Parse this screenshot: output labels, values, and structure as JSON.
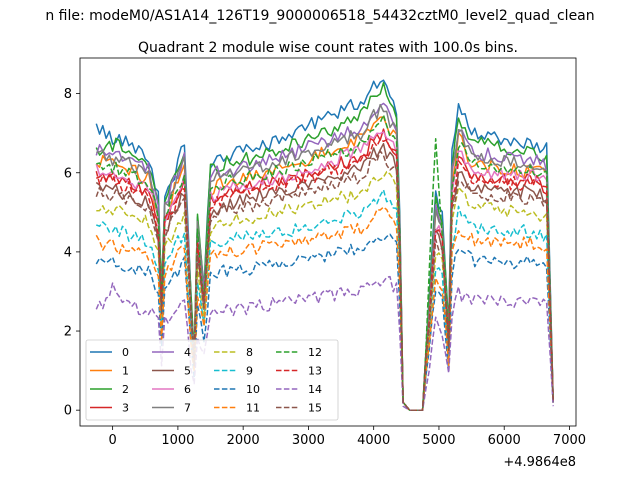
{
  "figure": {
    "suptitle": "n file: modeM0/AS1A14_126T19_9000006518_54432cztM0_level2_quad_clean",
    "offset_text": "+4.9864e8"
  },
  "chart_data": {
    "type": "line",
    "title": "Quadrant 2 module wise count rates with 100.0s bins.",
    "xlabel": "",
    "ylabel": "",
    "xlim": [
      -500,
      7100
    ],
    "ylim": [
      -0.4,
      8.9
    ],
    "x_ticks": [
      0,
      1000,
      2000,
      3000,
      4000,
      5000,
      6000,
      7000
    ],
    "x_tick_labels": [
      "0",
      "1000",
      "2000",
      "3000",
      "4000",
      "5000",
      "6000",
      "7000"
    ],
    "y_ticks": [
      0,
      2,
      4,
      6,
      8
    ],
    "y_tick_labels": [
      "0",
      "2",
      "4",
      "6",
      "8"
    ],
    "legend_placement": "lower-left",
    "legend_columns": 4,
    "x_breakpoints": [
      -250,
      -150,
      0,
      100,
      300,
      450,
      550,
      700,
      750,
      800,
      950,
      1100,
      1200,
      1250,
      1300,
      1400,
      1500,
      1600,
      2200,
      2900,
      3800,
      4000,
      4150,
      4250,
      4350,
      4400,
      4450,
      4550,
      4650,
      4750,
      4950,
      5050,
      5150,
      5200,
      5300,
      5350,
      5500,
      6500,
      6650,
      6750
    ],
    "x_step": 50,
    "series": [
      {
        "name": "0",
        "color": "#1f77b4",
        "dash": "solid",
        "values": [
          7.2,
          7.1,
          6.9,
          6.8,
          6.7,
          6.5,
          6.3,
          5.5,
          3.0,
          5.5,
          6.0,
          6.8,
          3.0,
          1.5,
          5.0,
          3.2,
          6.2,
          6.4,
          6.6,
          7.1,
          7.8,
          8.2,
          8.4,
          8.0,
          7.5,
          5.0,
          0.2,
          0.0,
          0.0,
          0.0,
          5.5,
          5.0,
          2.0,
          6.5,
          7.6,
          7.5,
          7.0,
          6.7,
          6.6,
          0.2
        ]
      },
      {
        "name": "1",
        "color": "#ff7f0e",
        "dash": "solid",
        "values": [
          6.3,
          6.3,
          6.2,
          6.1,
          6.1,
          5.9,
          5.9,
          4.9,
          2.7,
          4.9,
          5.6,
          6.1,
          2.6,
          1.4,
          4.5,
          2.9,
          5.5,
          5.7,
          5.9,
          6.3,
          6.9,
          7.2,
          7.3,
          7.0,
          6.9,
          4.5,
          0.2,
          0.0,
          0.0,
          0.0,
          4.9,
          4.5,
          1.8,
          5.8,
          6.9,
          6.8,
          6.2,
          6.0,
          6.0,
          0.2
        ]
      },
      {
        "name": "2",
        "color": "#2ca02c",
        "dash": "solid",
        "values": [
          6.5,
          6.7,
          6.7,
          6.7,
          6.5,
          6.3,
          6.2,
          5.2,
          2.9,
          5.4,
          5.9,
          6.6,
          2.9,
          1.5,
          4.8,
          3.1,
          6.2,
          6.2,
          6.4,
          6.8,
          7.4,
          7.9,
          8.2,
          7.7,
          7.3,
          4.7,
          0.2,
          0.0,
          0.0,
          0.0,
          5.5,
          4.8,
          2.0,
          6.2,
          7.3,
          7.3,
          6.8,
          6.5,
          6.4,
          0.2
        ]
      },
      {
        "name": "3",
        "color": "#d62728",
        "dash": "solid",
        "values": [
          5.9,
          5.9,
          5.8,
          5.8,
          5.7,
          5.6,
          5.5,
          4.7,
          2.6,
          4.7,
          5.3,
          5.8,
          2.5,
          1.3,
          4.2,
          2.7,
          5.3,
          5.4,
          5.7,
          5.9,
          6.4,
          6.8,
          7.0,
          6.8,
          6.5,
          4.3,
          0.2,
          0.0,
          0.0,
          0.0,
          4.6,
          4.3,
          1.7,
          5.4,
          6.4,
          6.3,
          5.9,
          5.8,
          5.6,
          0.2
        ]
      },
      {
        "name": "4",
        "color": "#9467bd",
        "dash": "solid",
        "values": [
          6.6,
          6.6,
          6.5,
          6.5,
          6.3,
          6.2,
          6.1,
          5.1,
          2.8,
          5.2,
          5.8,
          6.4,
          2.8,
          1.4,
          4.7,
          3.0,
          5.9,
          6.0,
          6.2,
          6.6,
          7.1,
          7.6,
          7.8,
          7.4,
          7.1,
          4.6,
          0.2,
          0.0,
          0.0,
          0.0,
          5.1,
          4.7,
          1.9,
          6.1,
          7.1,
          7.0,
          6.5,
          6.3,
          6.2,
          0.2
        ]
      },
      {
        "name": "5",
        "color": "#8c564b",
        "dash": "solid",
        "values": [
          5.7,
          5.6,
          5.6,
          5.5,
          5.4,
          5.3,
          5.2,
          4.4,
          2.4,
          4.5,
          5.0,
          5.5,
          2.4,
          1.3,
          4.0,
          2.6,
          5.0,
          5.1,
          5.4,
          5.6,
          6.1,
          6.5,
          6.6,
          6.4,
          6.2,
          4.1,
          0.2,
          0.0,
          0.0,
          0.0,
          4.4,
          4.1,
          1.6,
          5.1,
          6.1,
          6.0,
          5.6,
          5.5,
          5.3,
          0.2
        ]
      },
      {
        "name": "6",
        "color": "#e377c2",
        "dash": "solid",
        "values": [
          6.1,
          6.0,
          6.0,
          5.9,
          5.8,
          5.7,
          5.6,
          4.8,
          2.6,
          4.8,
          5.4,
          5.9,
          2.6,
          1.3,
          4.3,
          2.8,
          5.4,
          5.5,
          5.8,
          6.0,
          6.6,
          7.0,
          7.1,
          6.9,
          6.6,
          4.4,
          0.2,
          0.0,
          0.0,
          0.0,
          4.7,
          4.4,
          1.7,
          5.5,
          6.5,
          6.4,
          6.0,
          5.9,
          5.7,
          0.2
        ]
      },
      {
        "name": "7",
        "color": "#7f7f7f",
        "dash": "solid",
        "values": [
          6.5,
          6.4,
          6.3,
          6.3,
          6.2,
          6.0,
          5.9,
          5.0,
          2.8,
          5.1,
          5.7,
          6.3,
          2.7,
          1.4,
          4.6,
          2.9,
          5.8,
          5.9,
          6.1,
          6.5,
          7.0,
          7.5,
          7.6,
          7.3,
          7.0,
          4.6,
          0.2,
          0.0,
          0.0,
          0.0,
          5.0,
          4.6,
          1.9,
          6.0,
          7.0,
          6.9,
          6.4,
          6.2,
          6.1,
          0.2
        ]
      },
      {
        "name": "8",
        "color": "#bcbd22",
        "dash": "dashed",
        "values": [
          5.1,
          5.1,
          5.0,
          5.0,
          4.9,
          4.8,
          4.7,
          4.0,
          2.2,
          4.1,
          4.5,
          5.0,
          2.2,
          1.2,
          3.6,
          2.3,
          4.6,
          4.7,
          4.9,
          5.1,
          5.5,
          5.8,
          6.0,
          5.8,
          5.6,
          3.7,
          0.2,
          0.0,
          0.0,
          0.0,
          4.0,
          3.7,
          1.5,
          4.6,
          5.5,
          5.4,
          5.1,
          5.0,
          4.8,
          0.2
        ]
      },
      {
        "name": "9",
        "color": "#17becf",
        "dash": "dashed",
        "values": [
          4.6,
          4.6,
          4.5,
          4.5,
          4.4,
          4.3,
          4.2,
          3.6,
          2.0,
          3.7,
          4.1,
          4.5,
          2.0,
          1.1,
          3.3,
          2.1,
          4.2,
          4.3,
          4.4,
          4.6,
          5.0,
          5.3,
          5.4,
          5.2,
          5.0,
          3.4,
          0.2,
          0.0,
          0.0,
          0.0,
          3.6,
          3.4,
          1.3,
          4.2,
          5.0,
          4.9,
          4.6,
          4.5,
          4.3,
          0.2
        ]
      },
      {
        "name": "10",
        "color": "#1f77b4",
        "dash": "dashed",
        "values": [
          3.8,
          3.8,
          3.7,
          3.7,
          3.6,
          3.5,
          3.5,
          3.0,
          1.6,
          3.0,
          3.4,
          3.7,
          1.6,
          0.9,
          2.7,
          1.7,
          3.4,
          3.5,
          3.6,
          3.8,
          4.1,
          4.3,
          4.4,
          4.3,
          4.1,
          2.8,
          0.2,
          0.0,
          0.0,
          0.0,
          3.0,
          2.8,
          1.1,
          3.5,
          4.1,
          4.0,
          3.8,
          3.7,
          3.6,
          0.2
        ]
      },
      {
        "name": "11",
        "color": "#ff7f0e",
        "dash": "dashed",
        "values": [
          4.3,
          4.2,
          4.2,
          4.1,
          4.1,
          4.0,
          3.9,
          3.3,
          1.8,
          3.4,
          3.8,
          4.2,
          1.8,
          1.0,
          3.0,
          2.0,
          3.9,
          4.0,
          4.1,
          4.3,
          4.6,
          4.9,
          5.0,
          4.8,
          4.7,
          3.1,
          0.2,
          0.0,
          0.0,
          0.0,
          3.3,
          3.1,
          1.2,
          3.9,
          4.6,
          4.5,
          4.3,
          4.2,
          4.0,
          0.2
        ]
      },
      {
        "name": "12",
        "color": "#2ca02c",
        "dash": "dashed",
        "values": [
          6.2,
          6.2,
          6.1,
          6.1,
          6.0,
          5.8,
          5.7,
          4.9,
          2.7,
          4.9,
          5.5,
          6.0,
          2.6,
          1.4,
          4.4,
          2.8,
          5.6,
          5.7,
          5.9,
          6.2,
          6.7,
          7.1,
          7.3,
          7.0,
          6.8,
          4.5,
          0.2,
          0.0,
          0.0,
          0.0,
          6.8,
          4.5,
          1.8,
          5.7,
          6.7,
          6.6,
          6.2,
          6.0,
          5.9,
          0.2
        ]
      },
      {
        "name": "13",
        "color": "#d62728",
        "dash": "dashed",
        "values": [
          5.9,
          5.8,
          5.8,
          5.7,
          5.6,
          5.5,
          5.4,
          4.6,
          2.5,
          4.7,
          5.2,
          5.7,
          2.5,
          1.3,
          4.2,
          2.7,
          5.2,
          5.3,
          5.6,
          5.8,
          6.3,
          6.7,
          6.9,
          6.6,
          6.4,
          4.2,
          0.2,
          0.0,
          0.0,
          0.0,
          4.6,
          4.2,
          1.7,
          5.3,
          6.3,
          6.2,
          5.8,
          5.7,
          5.5,
          0.2
        ]
      },
      {
        "name": "14",
        "color": "#9467bd",
        "dash": "dashed",
        "values": [
          2.7,
          2.7,
          3.1,
          2.8,
          2.6,
          2.5,
          2.5,
          2.2,
          1.2,
          2.2,
          2.4,
          2.7,
          1.2,
          0.6,
          2.0,
          1.3,
          2.5,
          2.5,
          2.6,
          2.8,
          3.0,
          3.2,
          3.3,
          3.2,
          3.1,
          2.0,
          0.1,
          0.0,
          0.0,
          0.0,
          2.2,
          2.0,
          0.8,
          2.5,
          3.0,
          2.9,
          2.8,
          2.7,
          2.6,
          0.1
        ]
      },
      {
        "name": "15",
        "color": "#8c564b",
        "dash": "dashed",
        "values": [
          5.5,
          5.5,
          5.4,
          5.4,
          5.3,
          5.2,
          5.1,
          4.3,
          2.4,
          4.4,
          4.9,
          5.4,
          2.3,
          1.2,
          3.9,
          2.5,
          4.9,
          5.0,
          5.2,
          5.5,
          5.9,
          6.3,
          6.5,
          6.2,
          6.0,
          4.0,
          0.2,
          0.0,
          0.0,
          0.0,
          4.3,
          4.0,
          1.6,
          5.0,
          5.9,
          5.8,
          5.5,
          5.3,
          5.2,
          0.2
        ]
      }
    ]
  }
}
